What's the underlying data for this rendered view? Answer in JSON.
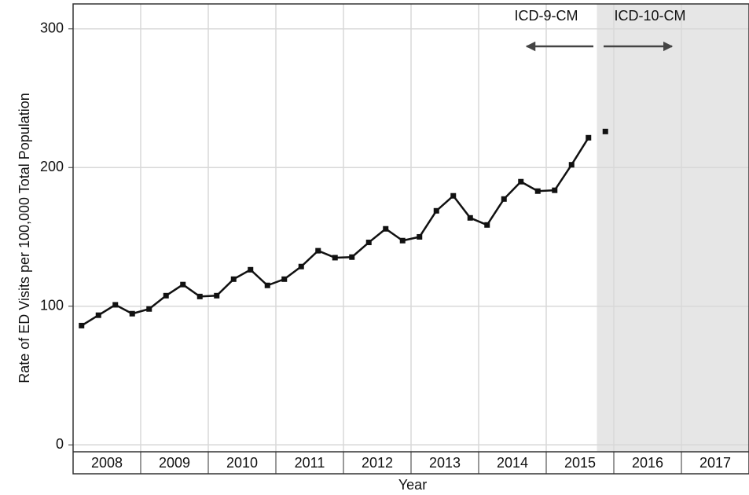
{
  "chart_data": {
    "type": "line",
    "y_label": "Rate of ED Visits per 100,000 Total Population",
    "x_label": "Year",
    "categories": [
      "2008",
      "2009",
      "2010",
      "2011",
      "2012",
      "2013",
      "2014",
      "2015",
      "2016",
      "2017"
    ],
    "xlim": [
      2008,
      2018
    ],
    "ylim": [
      -5,
      318
    ],
    "yticks": [
      0,
      100,
      200,
      300
    ],
    "grid": true,
    "shaded_xlim": [
      2015.75,
      2018
    ],
    "annotations": [
      "ICD-9-CM",
      "ICD-10-CM"
    ],
    "series": [
      {
        "color": "#111111",
        "line": true,
        "x": [
          2008.125,
          2008.375,
          2008.625,
          2008.875,
          2009.125,
          2009.375,
          2009.625,
          2009.875,
          2010.125,
          2010.375,
          2010.625,
          2010.875,
          2011.125,
          2011.375,
          2011.625,
          2011.875,
          2012.125,
          2012.375,
          2012.625,
          2012.875,
          2013.125,
          2013.375,
          2013.625,
          2013.875,
          2014.125,
          2014.375,
          2014.625,
          2014.875,
          2015.125,
          2015.375,
          2015.625
        ],
        "values": [
          86,
          93.5,
          101,
          94.6,
          98,
          107.6,
          115.6,
          107,
          107.6,
          119.5,
          126.3,
          115,
          119.5,
          128.6,
          140,
          135,
          135.4,
          146,
          155.8,
          147.3,
          150,
          168.8,
          179.6,
          163.7,
          158.6,
          177.3,
          189.8,
          183,
          183.6,
          202,
          221.5
        ]
      },
      {
        "color": "#111111",
        "line": false,
        "x": [
          2015.875
        ],
        "values": [
          226
        ]
      }
    ]
  }
}
